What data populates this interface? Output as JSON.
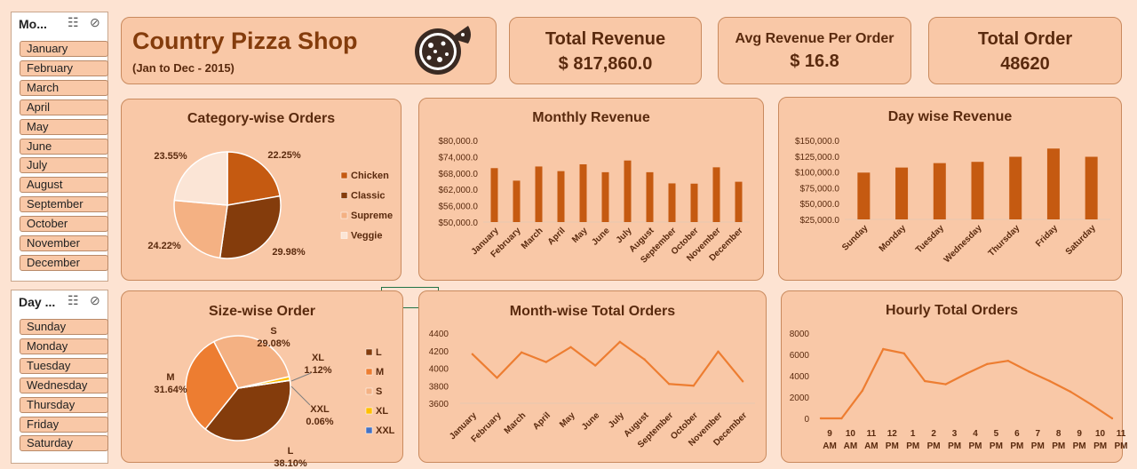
{
  "slicers": {
    "month": {
      "title": "Mo...",
      "items": [
        "January",
        "February",
        "March",
        "April",
        "May",
        "June",
        "July",
        "August",
        "September",
        "October",
        "November",
        "December"
      ]
    },
    "day": {
      "title": "Day ...",
      "items": [
        "Sunday",
        "Monday",
        "Tuesday",
        "Wednesday",
        "Thursday",
        "Friday",
        "Saturday"
      ]
    }
  },
  "header": {
    "title": "Country Pizza Shop",
    "subtitle": "(Jan to Dec - 2015)",
    "logo_icon": "pizza-icon"
  },
  "kpis": {
    "total_revenue": {
      "label": "Total Revenue",
      "value": "$ 817,860.0"
    },
    "avg_revenue": {
      "label": "Avg Revenue Per Order",
      "value": "$ 16.8"
    },
    "total_order": {
      "label": "Total Order",
      "value": "48620"
    }
  },
  "colors": {
    "accent": "#c55a11",
    "dark": "#843c0c",
    "light": "#f4b183",
    "veggie": "#fbe5d6",
    "line": "#ed7d31",
    "background": "#fde3d2"
  },
  "chart_data": [
    {
      "id": "category",
      "type": "pie",
      "title": "Category-wise Orders",
      "labels": [
        "Chicken",
        "Classic",
        "Supreme",
        "Veggie"
      ],
      "values": [
        22.25,
        29.98,
        24.22,
        23.55
      ],
      "value_labels": [
        "22.25%",
        "29.98%",
        "24.22%",
        "23.55%"
      ],
      "colors": [
        "#c55a11",
        "#843c0c",
        "#f4b183",
        "#fbe5d6"
      ],
      "legend": "right"
    },
    {
      "id": "monthly_revenue",
      "type": "bar",
      "title": "Monthly Revenue",
      "categories": [
        "January",
        "February",
        "March",
        "April",
        "May",
        "June",
        "July",
        "August",
        "September",
        "October",
        "November",
        "December"
      ],
      "values": [
        69800,
        65200,
        70400,
        68700,
        71200,
        68300,
        72600,
        68300,
        64200,
        64100,
        70100,
        64800
      ],
      "ylim": [
        50000,
        80000
      ],
      "yticks": [
        "$80,000.0",
        "$74,000.0",
        "$68,000.0",
        "$62,000.0",
        "$56,000.0",
        "$50,000.0"
      ],
      "ytick_values": [
        80000,
        74000,
        68000,
        62000,
        56000,
        50000
      ],
      "color": "#c55a11"
    },
    {
      "id": "day_revenue",
      "type": "bar",
      "title": "Day wise Revenue",
      "categories": [
        "Sunday",
        "Monday",
        "Tuesday",
        "Wednesday",
        "Thursday",
        "Friday",
        "Saturday"
      ],
      "values": [
        99000,
        107000,
        114000,
        116000,
        124000,
        137000,
        124000
      ],
      "ylim": [
        25000,
        150000
      ],
      "yticks": [
        "$150,000.0",
        "$125,000.0",
        "$100,000.0",
        "$75,000.0",
        "$50,000.0",
        "$25,000.0"
      ],
      "ytick_values": [
        150000,
        125000,
        100000,
        75000,
        50000,
        25000
      ],
      "color": "#c55a11"
    },
    {
      "id": "size",
      "type": "pie",
      "title": "Size-wise Order",
      "labels": [
        "L",
        "M",
        "S",
        "XL",
        "XXL"
      ],
      "values": [
        38.1,
        31.64,
        29.08,
        1.12,
        0.06
      ],
      "value_labels": [
        "38.10%",
        "31.64%",
        "29.08%",
        "1.12%",
        "0.06%"
      ],
      "colors": [
        "#843c0c",
        "#ed7d31",
        "#f4b183",
        "#ffc000",
        "#4472c4"
      ],
      "legend": "right"
    },
    {
      "id": "month_orders",
      "type": "line",
      "title": "Month-wise Total Orders",
      "categories": [
        "January",
        "February",
        "March",
        "April",
        "May",
        "June",
        "July",
        "August",
        "September",
        "October",
        "November",
        "December"
      ],
      "values": [
        4160,
        3890,
        4180,
        4070,
        4240,
        4030,
        4300,
        4100,
        3820,
        3800,
        4190,
        3850
      ],
      "ylim": [
        3600,
        4400
      ],
      "yticks": [
        "4400",
        "4200",
        "4000",
        "3800",
        "3600"
      ],
      "ytick_values": [
        4400,
        4200,
        4000,
        3800,
        3600
      ],
      "color": "#ed7d31"
    },
    {
      "id": "hourly_orders",
      "type": "line",
      "title": "Hourly Total Orders",
      "categories": [
        "9 AM",
        "10 AM",
        "11 AM",
        "12 PM",
        "1 PM",
        "2 PM",
        "3 PM",
        "4 PM",
        "5 PM",
        "6 PM",
        "7 PM",
        "8 PM",
        "9 PM",
        "10 PM",
        "11 PM"
      ],
      "hours": [
        "9",
        "10",
        "11",
        "12",
        "1",
        "2",
        "3",
        "4",
        "5",
        "6",
        "7",
        "8",
        "9",
        "10",
        "11"
      ],
      "ampm": [
        "AM",
        "AM",
        "AM",
        "PM",
        "PM",
        "PM",
        "PM",
        "PM",
        "PM",
        "PM",
        "PM",
        "PM",
        "PM",
        "PM",
        "PM"
      ],
      "values": [
        0,
        0,
        2600,
        6500,
        6100,
        3500,
        3200,
        4200,
        5100,
        5400,
        4400,
        3500,
        2500,
        1300,
        0
      ],
      "ylim": [
        0,
        8000
      ],
      "yticks": [
        "8000",
        "6000",
        "4000",
        "2000",
        "0"
      ],
      "ytick_values": [
        8000,
        6000,
        4000,
        2000,
        0
      ],
      "color": "#ed7d31"
    }
  ]
}
